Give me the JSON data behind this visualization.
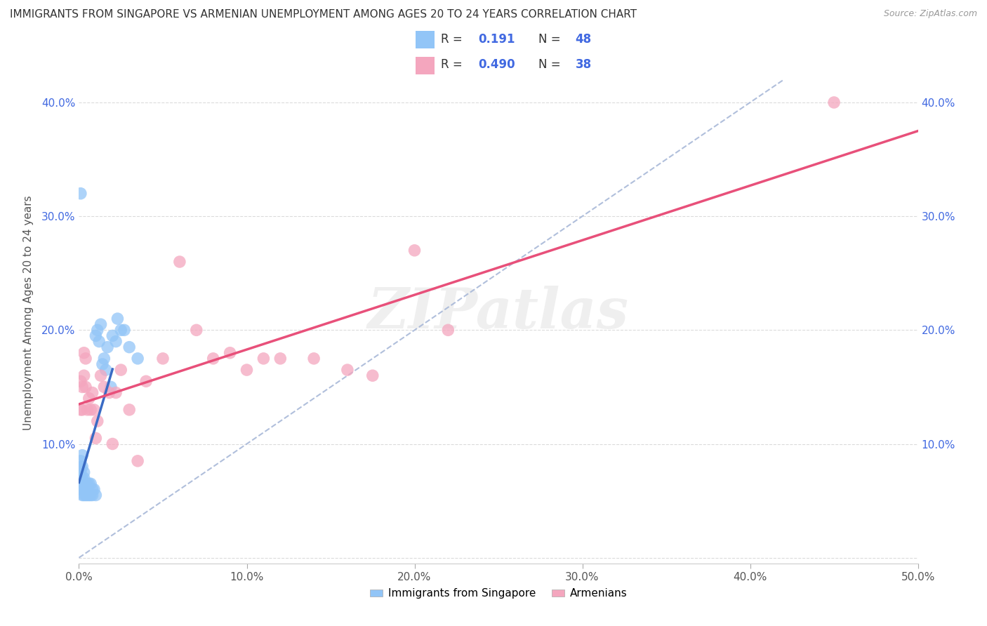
{
  "title": "IMMIGRANTS FROM SINGAPORE VS ARMENIAN UNEMPLOYMENT AMONG AGES 20 TO 24 YEARS CORRELATION CHART",
  "source": "Source: ZipAtlas.com",
  "ylabel": "Unemployment Among Ages 20 to 24 years",
  "xlim": [
    0.0,
    0.5
  ],
  "ylim": [
    -0.005,
    0.435
  ],
  "xticks": [
    0.0,
    0.1,
    0.2,
    0.3,
    0.4,
    0.5
  ],
  "xticklabels": [
    "0.0%",
    "10.0%",
    "20.0%",
    "30.0%",
    "40.0%",
    "50.0%"
  ],
  "yticks": [
    0.0,
    0.1,
    0.2,
    0.3,
    0.4
  ],
  "yticklabels": [
    "",
    "10.0%",
    "20.0%",
    "30.0%",
    "40.0%"
  ],
  "singapore_r": 0.191,
  "singapore_n": 48,
  "armenian_r": 0.49,
  "armenian_n": 38,
  "singapore_color": "#92C5F7",
  "armenian_color": "#F4A6BE",
  "singapore_line_color": "#3A6BC4",
  "armenian_line_color": "#E8507A",
  "diagonal_color": "#A8B8D8",
  "background_color": "#FFFFFF",
  "singapore_x": [
    0.001,
    0.001,
    0.001,
    0.001,
    0.001,
    0.001,
    0.002,
    0.002,
    0.002,
    0.002,
    0.002,
    0.002,
    0.003,
    0.003,
    0.003,
    0.003,
    0.003,
    0.004,
    0.004,
    0.004,
    0.005,
    0.005,
    0.005,
    0.006,
    0.006,
    0.007,
    0.007,
    0.008,
    0.008,
    0.009,
    0.01,
    0.01,
    0.011,
    0.012,
    0.013,
    0.014,
    0.015,
    0.016,
    0.017,
    0.019,
    0.02,
    0.022,
    0.023,
    0.025,
    0.027,
    0.03,
    0.035,
    0.001
  ],
  "singapore_y": [
    0.06,
    0.065,
    0.07,
    0.075,
    0.08,
    0.085,
    0.055,
    0.06,
    0.065,
    0.07,
    0.08,
    0.09,
    0.055,
    0.06,
    0.065,
    0.07,
    0.075,
    0.055,
    0.06,
    0.065,
    0.055,
    0.06,
    0.065,
    0.055,
    0.065,
    0.055,
    0.065,
    0.055,
    0.06,
    0.06,
    0.055,
    0.195,
    0.2,
    0.19,
    0.205,
    0.17,
    0.175,
    0.165,
    0.185,
    0.15,
    0.195,
    0.19,
    0.21,
    0.2,
    0.2,
    0.185,
    0.175,
    0.32
  ],
  "armenian_x": [
    0.001,
    0.001,
    0.002,
    0.002,
    0.003,
    0.003,
    0.004,
    0.004,
    0.005,
    0.006,
    0.007,
    0.008,
    0.009,
    0.01,
    0.011,
    0.013,
    0.015,
    0.018,
    0.02,
    0.022,
    0.025,
    0.03,
    0.035,
    0.04,
    0.05,
    0.06,
    0.07,
    0.08,
    0.09,
    0.1,
    0.11,
    0.12,
    0.14,
    0.16,
    0.175,
    0.2,
    0.22,
    0.45
  ],
  "armenian_y": [
    0.13,
    0.155,
    0.13,
    0.15,
    0.16,
    0.18,
    0.15,
    0.175,
    0.13,
    0.14,
    0.13,
    0.145,
    0.13,
    0.105,
    0.12,
    0.16,
    0.15,
    0.145,
    0.1,
    0.145,
    0.165,
    0.13,
    0.085,
    0.155,
    0.175,
    0.26,
    0.2,
    0.175,
    0.18,
    0.165,
    0.175,
    0.175,
    0.175,
    0.165,
    0.16,
    0.27,
    0.2,
    0.4
  ],
  "title_fontsize": 11,
  "axis_label_fontsize": 11,
  "tick_fontsize": 11,
  "legend_fontsize": 13
}
